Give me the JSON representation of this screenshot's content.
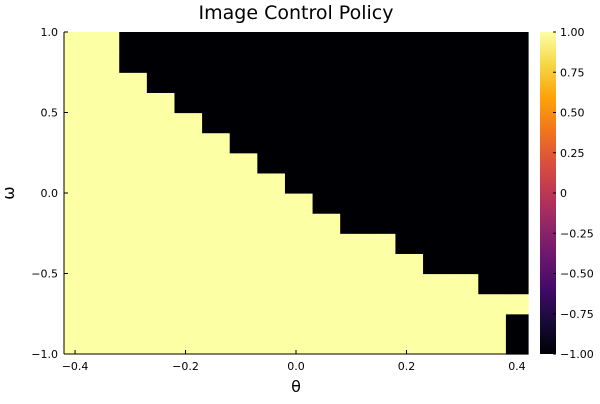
{
  "chart_data": {
    "type": "heatmap",
    "title": "Image Control Policy",
    "xlabel": "θ",
    "ylabel": "ω",
    "xlim": [
      -0.42,
      0.42
    ],
    "ylim": [
      -1.0,
      1.0
    ],
    "x_ticks": [
      -0.4,
      -0.2,
      0.0,
      0.2,
      0.4
    ],
    "x_tick_labels": [
      "−0.4",
      "−0.2",
      "0.0",
      "0.2",
      "0.4"
    ],
    "y_ticks": [
      -1.0,
      -0.5,
      0.0,
      0.5,
      1.0
    ],
    "y_tick_labels": [
      "−1.0",
      "−0.5",
      "0.0",
      "0.5",
      "1.0"
    ],
    "colorbar": {
      "range": [
        -1.0,
        1.0
      ],
      "colormap": "inferno",
      "ticks": [
        -1.0,
        -0.75,
        -0.5,
        -0.25,
        0.0,
        0.25,
        0.5,
        0.75,
        1.0
      ],
      "tick_labels": [
        "−1.00",
        "−0.75",
        "−0.50",
        "−0.25",
        "0",
        "0.25",
        "0.50",
        "0.75",
        "1.00"
      ]
    },
    "grid": {
      "x_edges": [
        -0.42,
        -0.37,
        -0.32,
        -0.27,
        -0.22,
        -0.17,
        -0.12,
        -0.07,
        -0.02,
        0.03,
        0.08,
        0.13,
        0.18,
        0.23,
        0.28,
        0.33,
        0.38,
        0.42
      ],
      "y_edges": [
        -1.0,
        -0.875,
        -0.75,
        -0.625,
        -0.5,
        -0.375,
        -0.25,
        -0.125,
        0.0,
        0.125,
        0.25,
        0.375,
        0.5,
        0.625,
        0.75,
        0.875,
        1.0
      ],
      "values": [
        [
          1,
          1,
          1,
          1,
          1,
          1,
          1,
          1,
          1,
          1,
          1,
          1,
          1,
          1,
          1,
          1,
          -1
        ],
        [
          1,
          1,
          1,
          1,
          1,
          1,
          1,
          1,
          1,
          1,
          1,
          1,
          1,
          1,
          1,
          1,
          -1
        ],
        [
          1,
          1,
          1,
          1,
          1,
          1,
          1,
          1,
          1,
          1,
          1,
          1,
          1,
          1,
          1,
          1,
          1
        ],
        [
          1,
          1,
          1,
          1,
          1,
          1,
          1,
          1,
          1,
          1,
          1,
          1,
          1,
          1,
          1,
          -1,
          -1
        ],
        [
          1,
          1,
          1,
          1,
          1,
          1,
          1,
          1,
          1,
          1,
          1,
          1,
          1,
          -1,
          -1,
          -1,
          -1
        ],
        [
          1,
          1,
          1,
          1,
          1,
          1,
          1,
          1,
          1,
          1,
          1,
          1,
          -1,
          -1,
          -1,
          -1,
          -1
        ],
        [
          1,
          1,
          1,
          1,
          1,
          1,
          1,
          1,
          1,
          1,
          -1,
          -1,
          -1,
          -1,
          -1,
          -1,
          -1
        ],
        [
          1,
          1,
          1,
          1,
          1,
          1,
          1,
          1,
          1,
          -1,
          -1,
          -1,
          -1,
          -1,
          -1,
          -1,
          -1
        ],
        [
          1,
          1,
          1,
          1,
          1,
          1,
          1,
          1,
          -1,
          -1,
          -1,
          -1,
          -1,
          -1,
          -1,
          -1,
          -1
        ],
        [
          1,
          1,
          1,
          1,
          1,
          1,
          1,
          -1,
          -1,
          -1,
          -1,
          -1,
          -1,
          -1,
          -1,
          -1,
          -1
        ],
        [
          1,
          1,
          1,
          1,
          1,
          1,
          -1,
          -1,
          -1,
          -1,
          -1,
          -1,
          -1,
          -1,
          -1,
          -1,
          -1
        ],
        [
          1,
          1,
          1,
          1,
          1,
          -1,
          -1,
          -1,
          -1,
          -1,
          -1,
          -1,
          -1,
          -1,
          -1,
          -1,
          -1
        ],
        [
          1,
          1,
          1,
          1,
          -1,
          -1,
          -1,
          -1,
          -1,
          -1,
          -1,
          -1,
          -1,
          -1,
          -1,
          -1,
          -1
        ],
        [
          1,
          1,
          1,
          -1,
          -1,
          -1,
          -1,
          -1,
          -1,
          -1,
          -1,
          -1,
          -1,
          -1,
          -1,
          -1,
          -1
        ],
        [
          1,
          1,
          -1,
          -1,
          -1,
          -1,
          -1,
          -1,
          -1,
          -1,
          -1,
          -1,
          -1,
          -1,
          -1,
          -1,
          -1
        ],
        [
          1,
          1,
          -1,
          -1,
          -1,
          -1,
          -1,
          -1,
          -1,
          -1,
          -1,
          -1,
          -1,
          -1,
          -1,
          -1,
          -1
        ]
      ]
    },
    "colors": {
      "positive": "#fcffa4",
      "negative": "#000004"
    }
  }
}
